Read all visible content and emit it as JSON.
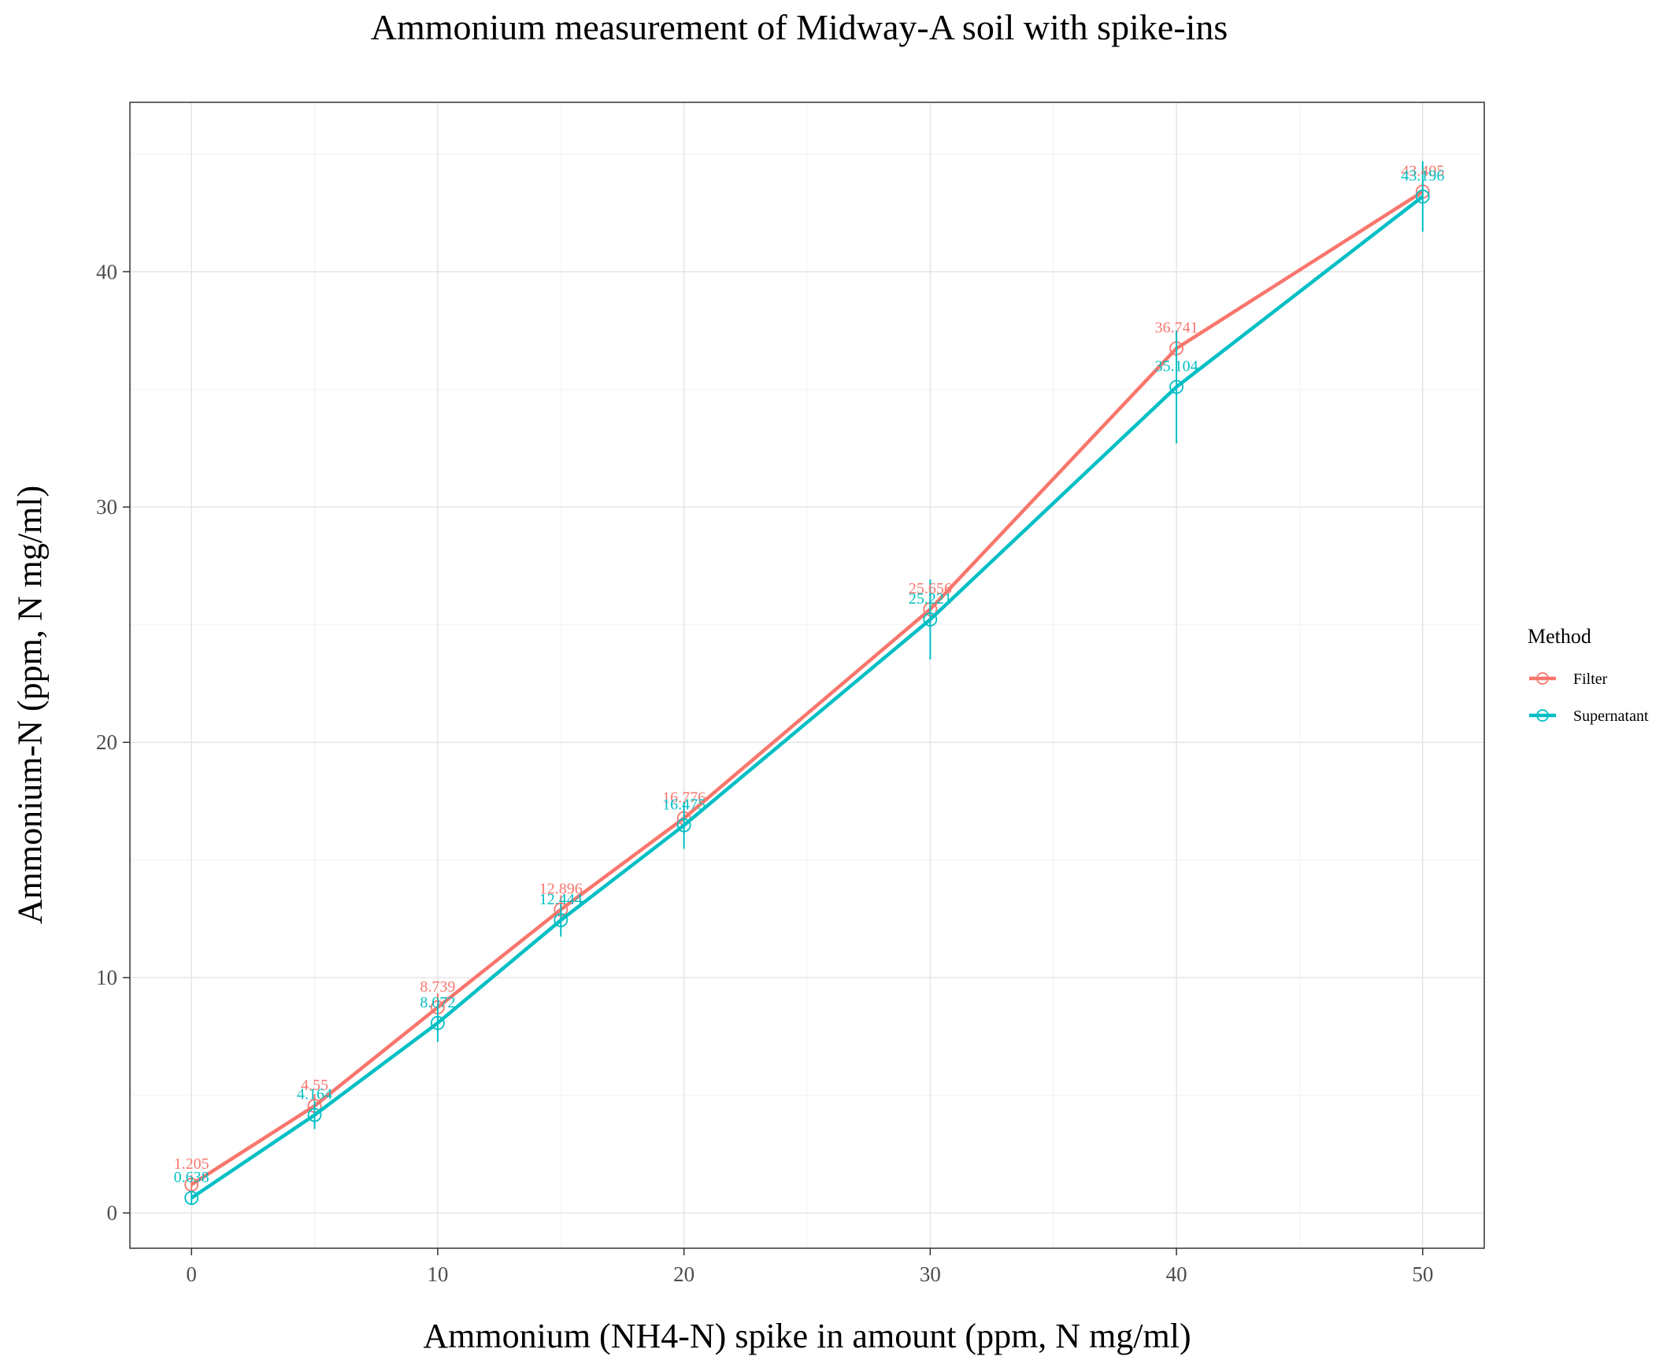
{
  "chart_data": {
    "type": "line",
    "title": "Ammonium measurement of Midway-A soil with spike-ins",
    "xlabel": "Ammonium (NH4-N) spike in amount (ppm, N mg/ml)",
    "ylabel": "Ammonium-N (ppm, N mg/ml)",
    "xlim": [
      -2.5,
      52.5
    ],
    "ylim": [
      -1.5,
      47.2
    ],
    "x_ticks": [
      0,
      10,
      20,
      30,
      40,
      50
    ],
    "y_ticks": [
      0,
      10,
      20,
      30,
      40
    ],
    "grid": true,
    "legend_title": "Method",
    "legend_position": "right",
    "series": [
      {
        "name": "Filter",
        "color": "#F8766D",
        "x": [
          0,
          5,
          10,
          15,
          20,
          30,
          40,
          50
        ],
        "y": [
          1.205,
          4.55,
          8.739,
          12.896,
          16.776,
          25.656,
          36.741,
          43.405
        ],
        "labels": [
          "1.205",
          "4.55",
          "8.739",
          "12.896",
          "16.776",
          "25.656",
          "36.741",
          "43.405"
        ],
        "error": [
          0.4,
          0.5,
          0.6,
          0.6,
          0.7,
          0.8,
          0.7,
          0.5
        ]
      },
      {
        "name": "Supernatant",
        "color": "#00BFC4",
        "x": [
          0,
          5,
          10,
          15,
          20,
          30,
          40,
          50
        ],
        "y": [
          0.638,
          4.164,
          8.072,
          12.444,
          16.475,
          25.221,
          35.104,
          43.196
        ],
        "labels": [
          "0.638",
          "4.164",
          "8.072",
          "12.444",
          "16.475",
          "25.221",
          "35.104",
          "43.196"
        ],
        "error": [
          0.3,
          0.6,
          0.8,
          0.7,
          1.0,
          1.7,
          2.4,
          1.5
        ]
      }
    ]
  }
}
